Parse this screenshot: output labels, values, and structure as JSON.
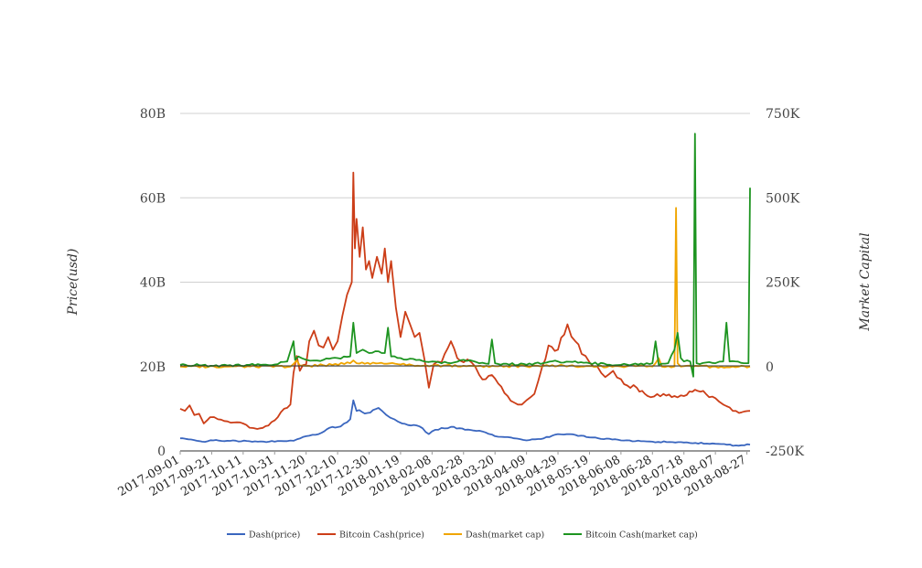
{
  "chart_data": {
    "type": "line",
    "ylabel": "Price(usd)",
    "y2label": "Market Capital",
    "y_left": {
      "ticks": [
        0,
        20,
        40,
        60,
        80
      ],
      "tick_labels": [
        "0",
        "20B",
        "40B",
        "60B",
        "80B"
      ],
      "range": [
        0,
        80
      ]
    },
    "y_right": {
      "ticks": [
        -250000,
        0,
        250000,
        500000,
        750000
      ],
      "tick_labels": [
        "-250K",
        "0",
        "250K",
        "500K",
        "750K"
      ],
      "range": [
        -250000,
        750000
      ]
    },
    "x_range": [
      "2017-09-01",
      "2018-08-29"
    ],
    "x_ticks": [
      "2017-09-01",
      "2017-09-21",
      "2017-10-11",
      "2017-10-31",
      "2017-11-20",
      "2017-12-10",
      "2017-12-30",
      "2018-01-19",
      "2018-02-08",
      "2018-02-28",
      "2018-03-20",
      "2018-04-09",
      "2018-04-29",
      "2018-05-19",
      "2018-06-08",
      "2018-06-28",
      "2018-07-18",
      "2018-08-07",
      "2018-08-27"
    ],
    "grid": "horizontal",
    "legend_position": "bottom",
    "series": [
      {
        "name": "Dash(price)",
        "axis": "left",
        "color": "#3a66bf",
        "points": [
          [
            "2017-09-01",
            3.0
          ],
          [
            "2017-09-08",
            2.7
          ],
          [
            "2017-09-15",
            2.2
          ],
          [
            "2017-09-22",
            2.5
          ],
          [
            "2017-10-01",
            2.4
          ],
          [
            "2017-10-15",
            2.3
          ],
          [
            "2017-10-31",
            2.2
          ],
          [
            "2017-11-12",
            2.4
          ],
          [
            "2017-11-20",
            3.5
          ],
          [
            "2017-11-28",
            4.0
          ],
          [
            "2017-12-05",
            5.5
          ],
          [
            "2017-12-12",
            5.8
          ],
          [
            "2017-12-18",
            7.5
          ],
          [
            "2017-12-20",
            12.0
          ],
          [
            "2017-12-22",
            9.5
          ],
          [
            "2017-12-29",
            9.0
          ],
          [
            "2018-01-05",
            10.2
          ],
          [
            "2018-01-10",
            8.5
          ],
          [
            "2018-01-15",
            7.5
          ],
          [
            "2018-01-20",
            6.5
          ],
          [
            "2018-01-31",
            5.8
          ],
          [
            "2018-02-06",
            4.0
          ],
          [
            "2018-02-10",
            5.0
          ],
          [
            "2018-02-20",
            5.7
          ],
          [
            "2018-03-01",
            5.0
          ],
          [
            "2018-03-10",
            4.8
          ],
          [
            "2018-03-20",
            3.5
          ],
          [
            "2018-04-01",
            3.0
          ],
          [
            "2018-04-09",
            2.5
          ],
          [
            "2018-04-20",
            3.0
          ],
          [
            "2018-04-29",
            4.0
          ],
          [
            "2018-05-10",
            3.8
          ],
          [
            "2018-05-19",
            3.2
          ],
          [
            "2018-06-08",
            2.5
          ],
          [
            "2018-06-28",
            2.2
          ],
          [
            "2018-07-18",
            2.0
          ],
          [
            "2018-08-07",
            1.7
          ],
          [
            "2018-08-20",
            1.3
          ],
          [
            "2018-08-29",
            1.5
          ]
        ]
      },
      {
        "name": "Bitcoin Cash(price)",
        "axis": "left",
        "color": "#cc3e18",
        "points": [
          [
            "2017-09-01",
            10.0
          ],
          [
            "2017-09-04",
            9.5
          ],
          [
            "2017-09-07",
            10.8
          ],
          [
            "2017-09-10",
            8.5
          ],
          [
            "2017-09-13",
            8.8
          ],
          [
            "2017-09-16",
            6.5
          ],
          [
            "2017-09-20",
            8.0
          ],
          [
            "2017-09-25",
            7.5
          ],
          [
            "2017-10-01",
            7.0
          ],
          [
            "2017-10-11",
            6.5
          ],
          [
            "2017-10-15",
            5.5
          ],
          [
            "2017-10-20",
            5.2
          ],
          [
            "2017-10-27",
            6.0
          ],
          [
            "2017-11-02",
            8.0
          ],
          [
            "2017-11-06",
            10.0
          ],
          [
            "2017-11-10",
            11.0
          ],
          [
            "2017-11-12",
            18.5
          ],
          [
            "2017-11-14",
            22.5
          ],
          [
            "2017-11-16",
            19.0
          ],
          [
            "2017-11-20",
            20.5
          ],
          [
            "2017-11-22",
            26.0
          ],
          [
            "2017-11-25",
            28.5
          ],
          [
            "2017-11-28",
            25.0
          ],
          [
            "2017-12-01",
            24.5
          ],
          [
            "2017-12-04",
            27.0
          ],
          [
            "2017-12-07",
            24.0
          ],
          [
            "2017-12-10",
            26.0
          ],
          [
            "2017-12-13",
            32.0
          ],
          [
            "2017-12-16",
            37.0
          ],
          [
            "2017-12-19",
            40.0
          ],
          [
            "2017-12-20",
            66.0
          ],
          [
            "2017-12-21",
            48.0
          ],
          [
            "2017-12-22",
            55.0
          ],
          [
            "2017-12-24",
            46.0
          ],
          [
            "2017-12-26",
            53.0
          ],
          [
            "2017-12-28",
            43.0
          ],
          [
            "2017-12-30",
            45.0
          ],
          [
            "2018-01-01",
            41.0
          ],
          [
            "2018-01-04",
            46.0
          ],
          [
            "2018-01-07",
            42.0
          ],
          [
            "2018-01-09",
            48.0
          ],
          [
            "2018-01-11",
            40.0
          ],
          [
            "2018-01-13",
            45.0
          ],
          [
            "2018-01-16",
            34.0
          ],
          [
            "2018-01-19",
            27.0
          ],
          [
            "2018-01-22",
            33.0
          ],
          [
            "2018-01-25",
            30.0
          ],
          [
            "2018-01-28",
            27.0
          ],
          [
            "2018-01-31",
            28.0
          ],
          [
            "2018-02-03",
            22.0
          ],
          [
            "2018-02-06",
            15.0
          ],
          [
            "2018-02-09",
            20.5
          ],
          [
            "2018-02-14",
            21.0
          ],
          [
            "2018-02-20",
            26.0
          ],
          [
            "2018-02-24",
            22.0
          ],
          [
            "2018-02-28",
            21.0
          ],
          [
            "2018-03-05",
            21.0
          ],
          [
            "2018-03-10",
            18.0
          ],
          [
            "2018-03-14",
            17.0
          ],
          [
            "2018-03-18",
            18.0
          ],
          [
            "2018-03-22",
            16.0
          ],
          [
            "2018-03-28",
            13.0
          ],
          [
            "2018-04-01",
            11.5
          ],
          [
            "2018-04-06",
            11.0
          ],
          [
            "2018-04-09",
            12.0
          ],
          [
            "2018-04-14",
            13.5
          ],
          [
            "2018-04-19",
            20.0
          ],
          [
            "2018-04-23",
            25.0
          ],
          [
            "2018-04-29",
            24.0
          ],
          [
            "2018-05-05",
            30.0
          ],
          [
            "2018-05-10",
            26.0
          ],
          [
            "2018-05-14",
            23.0
          ],
          [
            "2018-05-19",
            21.0
          ],
          [
            "2018-05-24",
            20.0
          ],
          [
            "2018-05-29",
            17.5
          ],
          [
            "2018-06-03",
            19.0
          ],
          [
            "2018-06-08",
            17.0
          ],
          [
            "2018-06-12",
            15.5
          ],
          [
            "2018-06-18",
            15.0
          ],
          [
            "2018-06-25",
            13.0
          ],
          [
            "2018-07-05",
            13.5
          ],
          [
            "2018-07-12",
            13.0
          ],
          [
            "2018-07-18",
            13.0
          ],
          [
            "2018-07-25",
            14.5
          ],
          [
            "2018-08-01",
            13.5
          ],
          [
            "2018-08-07",
            12.5
          ],
          [
            "2018-08-12",
            11.0
          ],
          [
            "2018-08-18",
            9.5
          ],
          [
            "2018-08-22",
            9.0
          ],
          [
            "2018-08-29",
            9.5
          ]
        ]
      },
      {
        "name": "Dash(market cap)",
        "axis": "right",
        "color": "#f0a500",
        "points": [
          [
            "2017-09-01",
            0
          ],
          [
            "2017-10-01",
            0
          ],
          [
            "2017-11-10",
            0
          ],
          [
            "2017-11-14",
            18000
          ],
          [
            "2017-11-16",
            3000
          ],
          [
            "2017-11-20",
            2000
          ],
          [
            "2017-12-01",
            4000
          ],
          [
            "2017-12-18",
            10000
          ],
          [
            "2017-12-20",
            18000
          ],
          [
            "2017-12-22",
            10000
          ],
          [
            "2018-01-05",
            10000
          ],
          [
            "2018-01-19",
            6000
          ],
          [
            "2018-02-08",
            3000
          ],
          [
            "2018-03-20",
            1000
          ],
          [
            "2018-04-29",
            2000
          ],
          [
            "2018-05-19",
            1500
          ],
          [
            "2018-06-08",
            0
          ],
          [
            "2018-06-28",
            0
          ],
          [
            "2018-07-02",
            25000
          ],
          [
            "2018-07-04",
            0
          ],
          [
            "2018-07-12",
            0
          ],
          [
            "2018-07-13",
            470000
          ],
          [
            "2018-07-14",
            10000
          ],
          [
            "2018-07-16",
            0
          ],
          [
            "2018-08-07",
            0
          ],
          [
            "2018-08-29",
            0
          ]
        ]
      },
      {
        "name": "Bitcoin Cash(market cap)",
        "axis": "right",
        "color": "#1d9420",
        "points": [
          [
            "2017-09-01",
            5000
          ],
          [
            "2017-09-15",
            4000
          ],
          [
            "2017-10-01",
            3000
          ],
          [
            "2017-10-15",
            5000
          ],
          [
            "2017-10-31",
            6000
          ],
          [
            "2017-11-08",
            15000
          ],
          [
            "2017-11-12",
            75000
          ],
          [
            "2017-11-13",
            20000
          ],
          [
            "2017-11-15",
            30000
          ],
          [
            "2017-11-20",
            20000
          ],
          [
            "2017-11-25",
            18000
          ],
          [
            "2017-12-01",
            20000
          ],
          [
            "2017-12-10",
            25000
          ],
          [
            "2017-12-18",
            30000
          ],
          [
            "2017-12-20",
            130000
          ],
          [
            "2017-12-22",
            40000
          ],
          [
            "2017-12-26",
            50000
          ],
          [
            "2017-12-30",
            40000
          ],
          [
            "2018-01-05",
            45000
          ],
          [
            "2018-01-09",
            40000
          ],
          [
            "2018-01-11",
            115000
          ],
          [
            "2018-01-13",
            30000
          ],
          [
            "2018-01-19",
            25000
          ],
          [
            "2018-01-31",
            20000
          ],
          [
            "2018-02-08",
            15000
          ],
          [
            "2018-02-20",
            10000
          ],
          [
            "2018-02-28",
            20000
          ],
          [
            "2018-03-10",
            10000
          ],
          [
            "2018-03-16",
            8000
          ],
          [
            "2018-03-18",
            80000
          ],
          [
            "2018-03-20",
            10000
          ],
          [
            "2018-04-09",
            5000
          ],
          [
            "2018-04-29",
            15000
          ],
          [
            "2018-05-19",
            10000
          ],
          [
            "2018-06-08",
            5000
          ],
          [
            "2018-06-28",
            10000
          ],
          [
            "2018-06-30",
            75000
          ],
          [
            "2018-07-02",
            5000
          ],
          [
            "2018-07-08",
            10000
          ],
          [
            "2018-07-12",
            50000
          ],
          [
            "2018-07-14",
            100000
          ],
          [
            "2018-07-16",
            25000
          ],
          [
            "2018-07-18",
            15000
          ],
          [
            "2018-07-22",
            15000
          ],
          [
            "2018-07-24",
            -30000
          ],
          [
            "2018-07-25",
            690000
          ],
          [
            "2018-07-26",
            10000
          ],
          [
            "2018-08-07",
            10000
          ],
          [
            "2018-08-12",
            15000
          ],
          [
            "2018-08-14",
            130000
          ],
          [
            "2018-08-16",
            15000
          ],
          [
            "2018-08-25",
            10000
          ],
          [
            "2018-08-28",
            10000
          ],
          [
            "2018-08-29",
            530000
          ]
        ]
      }
    ]
  }
}
